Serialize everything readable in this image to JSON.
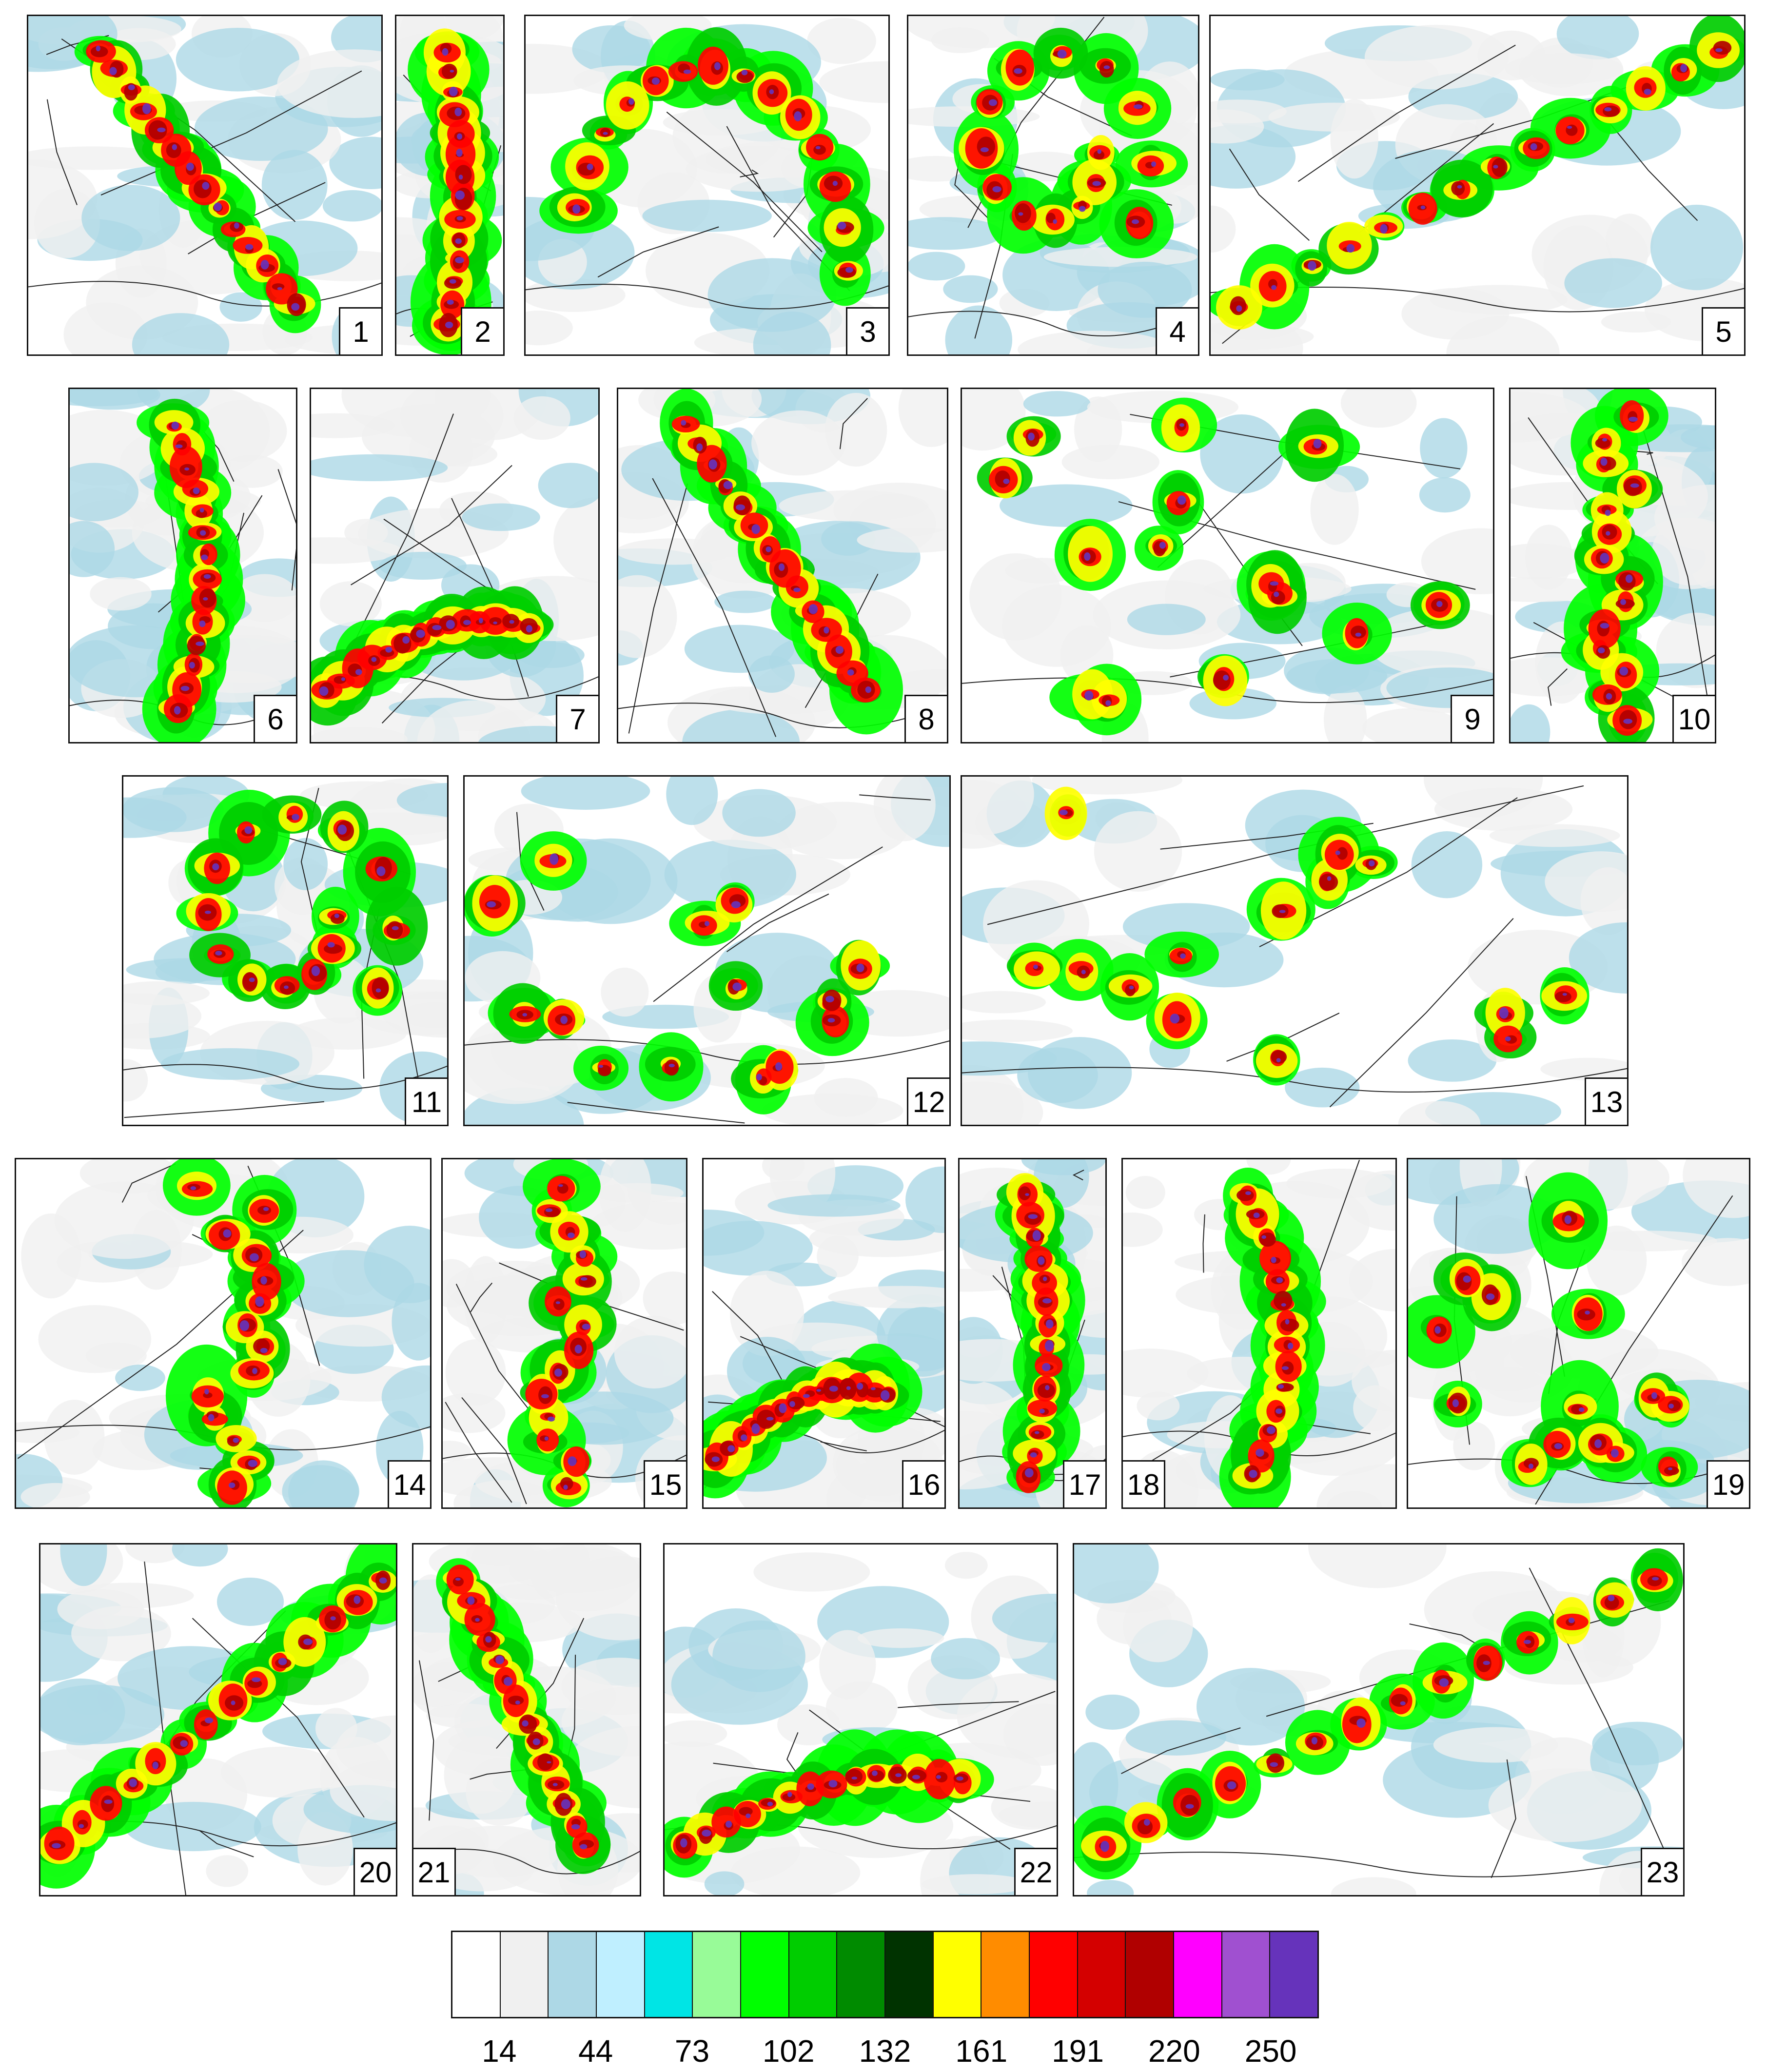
{
  "panels": [
    {
      "label": "1",
      "pattern": "band-nw"
    },
    {
      "label": "2",
      "pattern": "coastal-south"
    },
    {
      "label": "3",
      "pattern": "arc"
    },
    {
      "label": "4",
      "pattern": "cyclone"
    },
    {
      "label": "5",
      "pattern": "sw-streak"
    },
    {
      "label": "6",
      "pattern": "coastal-south"
    },
    {
      "label": "7",
      "pattern": "coast-band"
    },
    {
      "label": "8",
      "pattern": "band-nw"
    },
    {
      "label": "9",
      "pattern": "scattered"
    },
    {
      "label": "10",
      "pattern": "vertical"
    },
    {
      "label": "11",
      "pattern": "cyclone"
    },
    {
      "label": "12",
      "pattern": "scattered"
    },
    {
      "label": "13",
      "pattern": "scattered"
    },
    {
      "label": "14",
      "pattern": "vertical"
    },
    {
      "label": "15",
      "pattern": "vertical"
    },
    {
      "label": "16",
      "pattern": "coast-band"
    },
    {
      "label": "17",
      "pattern": "coastal-south"
    },
    {
      "label": "18",
      "pattern": "coastal-south"
    },
    {
      "label": "19",
      "pattern": "scattered"
    },
    {
      "label": "20",
      "pattern": "sw-streak"
    },
    {
      "label": "21",
      "pattern": "band-nw"
    },
    {
      "label": "22",
      "pattern": "coast-band"
    },
    {
      "label": "23",
      "pattern": "sw-streak"
    }
  ],
  "legend": {
    "colors": [
      "#ffffff",
      "#f0f0f0",
      "#add8e6",
      "#bfefff",
      "#00e5e5",
      "#98fb98",
      "#00ff00",
      "#00cd00",
      "#008b00",
      "#003300",
      "#ffff00",
      "#ff8c00",
      "#ff0000",
      "#d40000",
      "#b00000",
      "#ff00ff",
      "#a050d0",
      "#6633bb"
    ],
    "ticks": [
      "14",
      "44",
      "73",
      "102",
      "132",
      "161",
      "191",
      "220",
      "250"
    ]
  }
}
